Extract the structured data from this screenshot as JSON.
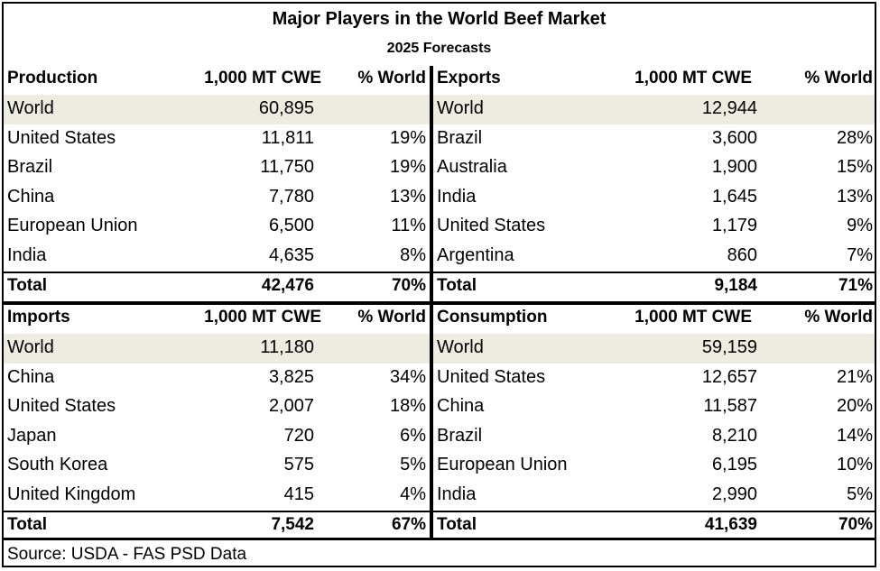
{
  "title": "Major Players in the World Beef Market",
  "subtitle": "2025 Forecasts",
  "source": "Source: USDA - FAS PSD Data",
  "production": {
    "header": [
      "Production",
      "1,000 MT CWE",
      "% World"
    ],
    "world": [
      "World",
      "60,895",
      ""
    ],
    "rows": [
      [
        "United States",
        "11,811",
        "19%"
      ],
      [
        "Brazil",
        "11,750",
        "19%"
      ],
      [
        "China",
        "7,780",
        "13%"
      ],
      [
        "European Union",
        "6,500",
        "11%"
      ],
      [
        "India",
        "4,635",
        "8%"
      ]
    ],
    "total": [
      "Total",
      "42,476",
      "70%"
    ]
  },
  "exports": {
    "header": [
      "Exports",
      "1,000 MT CWE",
      "% World"
    ],
    "world": [
      "World",
      "12,944",
      ""
    ],
    "rows": [
      [
        "Brazil",
        "3,600",
        "28%"
      ],
      [
        "Australia",
        "1,900",
        "15%"
      ],
      [
        "India",
        "1,645",
        "13%"
      ],
      [
        "United States",
        "1,179",
        "9%"
      ],
      [
        "Argentina",
        "860",
        "7%"
      ]
    ],
    "total": [
      "Total",
      "9,184",
      "71%"
    ]
  },
  "imports": {
    "header": [
      "Imports",
      "1,000 MT CWE",
      "% World"
    ],
    "world": [
      "World",
      "11,180",
      ""
    ],
    "rows": [
      [
        "China",
        "3,825",
        "34%"
      ],
      [
        "United States",
        "2,007",
        "18%"
      ],
      [
        "Japan",
        "720",
        "6%"
      ],
      [
        "South Korea",
        "575",
        "5%"
      ],
      [
        "United Kingdom",
        "415",
        "4%"
      ]
    ],
    "total": [
      "Total",
      "7,542",
      "67%"
    ]
  },
  "consumption": {
    "header": [
      "Consumption",
      "1,000 MT CWE",
      "% World"
    ],
    "world": [
      "World",
      "59,159",
      ""
    ],
    "rows": [
      [
        "United States",
        "12,657",
        "21%"
      ],
      [
        "China",
        "11,587",
        "20%"
      ],
      [
        "Brazil",
        "8,210",
        "14%"
      ],
      [
        "European Union",
        "6,195",
        "10%"
      ],
      [
        "India",
        "2,990",
        "5%"
      ]
    ],
    "total": [
      "Total",
      "41,639",
      "70%"
    ]
  }
}
